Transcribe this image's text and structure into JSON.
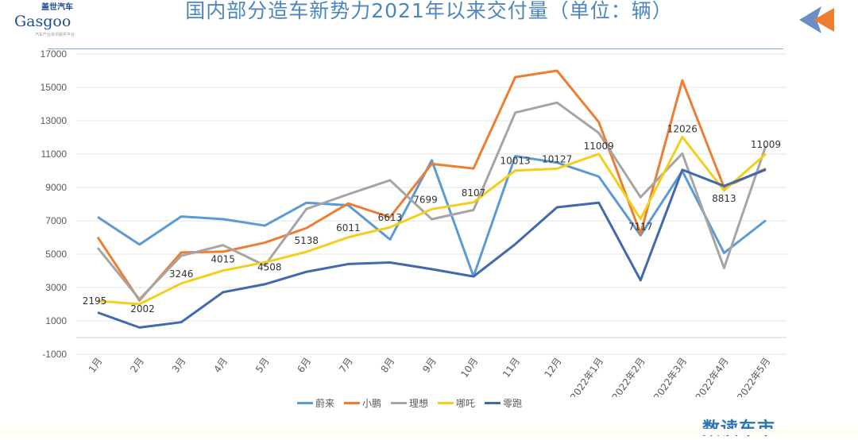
{
  "header": {
    "title": "国内部分造车新势力2021年以来交付量（单位：辆）",
    "logo_cn": "盖世汽车",
    "logo_en": "Gasgoo",
    "logo_sub": "汽车产业资讯服务平台"
  },
  "footer": {
    "brand": "数读车市"
  },
  "colors": {
    "title": "#4d86bd",
    "蔚来": "#5b9bd5",
    "小鹏": "#ed7d31",
    "理想": "#a5a5a5",
    "哪吒": "#f2cf1d",
    "零跑": "#4169b0"
  },
  "chart_data": {
    "type": "line",
    "title": "国内部分造车新势力2021年以来交付量（单位：辆）",
    "xlabel": "",
    "ylabel": "",
    "ylim": [
      -1000,
      17000
    ],
    "yticks": [
      -1000,
      1000,
      3000,
      5000,
      7000,
      9000,
      11000,
      13000,
      15000,
      17000
    ],
    "grid": true,
    "legend": "bottom",
    "categories": [
      "1月",
      "2月",
      "3月",
      "4月",
      "5月",
      "6月",
      "7月",
      "8月",
      "9月",
      "10月",
      "11月",
      "12月",
      "2022年1月",
      "2022年2月",
      "2022年3月",
      "2022年4月",
      "2022年5月"
    ],
    "series": [
      {
        "name": "蔚来",
        "color": "#5b9bd5",
        "values": [
          7225,
          5578,
          7257,
          7102,
          6711,
          8083,
          7931,
          5880,
          10628,
          3667,
          10878,
          10489,
          9652,
          6131,
          9985,
          5074,
          7024
        ]
      },
      {
        "name": "小鹏",
        "color": "#ed7d31",
        "values": [
          6015,
          2223,
          5102,
          5147,
          5686,
          6565,
          8040,
          7214,
          10412,
          10138,
          15613,
          16000,
          12922,
          6225,
          15414,
          9002,
          10125
        ]
      },
      {
        "name": "理想",
        "color": "#a5a5a5",
        "values": [
          5379,
          2300,
          4900,
          5539,
          4323,
          7713,
          8589,
          9433,
          7094,
          7649,
          13485,
          14087,
          12268,
          8414,
          11034,
          4167,
          11496
        ]
      },
      {
        "name": "哪吒",
        "color": "#f2cf1d",
        "values": [
          2195,
          2002,
          3246,
          4015,
          4508,
          5138,
          6011,
          6613,
          7699,
          8107,
          10013,
          10127,
          11009,
          7117,
          12026,
          8813,
          11009
        ],
        "data_labels": [
          "2195",
          "2002",
          "3246",
          "4015",
          "4508",
          "5138",
          "6011",
          "6613",
          "7699",
          "8107",
          "10013",
          "10127",
          "11009",
          "7117",
          "12026",
          "8813",
          "11009"
        ]
      },
      {
        "name": "零跑",
        "color": "#4169b0",
        "values": [
          1500,
          600,
          920,
          2717,
          3195,
          3942,
          4408,
          4502,
          4100,
          3660,
          5600,
          7807,
          8085,
          3435,
          10059,
          9087,
          10069
        ]
      }
    ]
  }
}
